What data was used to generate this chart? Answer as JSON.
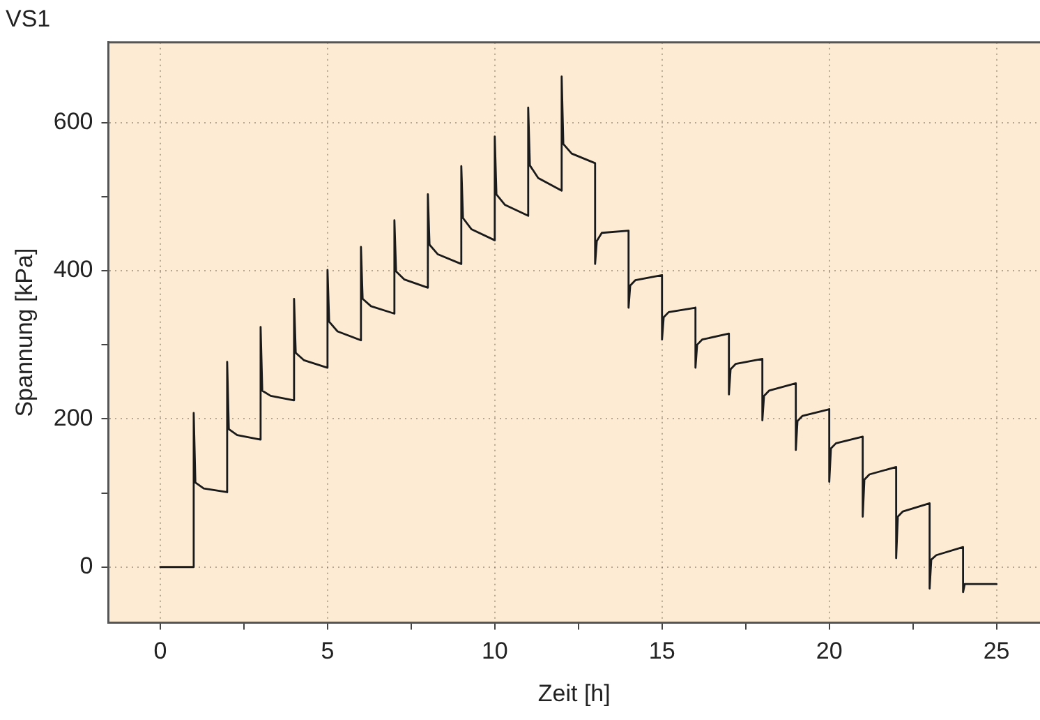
{
  "chart_data": {
    "type": "line",
    "title": "VS1",
    "xlabel": "Zeit [h]",
    "ylabel": "Spannung [kPa]",
    "xlim": [
      -1.55,
      26.3
    ],
    "ylim": [
      -75,
      708
    ],
    "xticks": [
      0,
      {
        "value": 2.5,
        "label": null
      },
      5,
      {
        "value": 7.5,
        "label": null
      },
      10,
      {
        "value": 12.5,
        "label": null
      },
      15,
      {
        "value": 17.5,
        "label": null
      },
      20,
      {
        "value": 22.5,
        "label": null
      },
      25
    ],
    "yticks": [
      0,
      {
        "value": 100,
        "label": null
      },
      200,
      {
        "value": 300,
        "label": null
      },
      400,
      {
        "value": 500,
        "label": null
      },
      600
    ],
    "grid": true,
    "legend": false,
    "marker": "none",
    "line_style": "solid",
    "series": [
      {
        "color": "#1a1a1a",
        "x": [
          0,
          1,
          1,
          1.05,
          1.3,
          2,
          2,
          2.05,
          2.3,
          3,
          3,
          3.05,
          3.3,
          4,
          4,
          4.05,
          4.3,
          5,
          5,
          5.05,
          5.3,
          6,
          6,
          6.05,
          6.3,
          7,
          7,
          7.05,
          7.3,
          8,
          8,
          8.05,
          8.3,
          9,
          9,
          9.05,
          9.3,
          10,
          10,
          10.05,
          10.3,
          11,
          11,
          11.05,
          11.3,
          12,
          12,
          12.05,
          12.3,
          13,
          13,
          13.05,
          13.2,
          14,
          14,
          14.05,
          14.2,
          15,
          15,
          15.05,
          15.2,
          16,
          16,
          16.05,
          16.2,
          17,
          17,
          17.05,
          17.2,
          18,
          18,
          18.05,
          18.2,
          19,
          19,
          19.05,
          19.2,
          20,
          20,
          20.05,
          20.2,
          21,
          21,
          21.05,
          21.2,
          22,
          22,
          22.05,
          22.2,
          23,
          23,
          23.05,
          23.2,
          24,
          24,
          24.05,
          25
        ],
        "values": [
          0,
          0,
          208,
          114,
          106,
          101,
          277,
          186,
          178,
          172,
          324,
          238,
          231,
          225,
          362,
          289,
          279,
          269,
          401,
          331,
          318,
          306,
          432,
          362,
          352,
          342,
          468,
          399,
          388,
          377,
          503,
          435,
          422,
          409,
          541,
          471,
          456,
          441,
          581,
          503,
          489,
          474,
          620,
          542,
          525,
          508,
          662,
          571,
          558,
          545,
          409,
          440,
          451,
          454,
          350,
          380,
          387,
          394,
          307,
          337,
          344,
          350,
          269,
          300,
          307,
          315,
          233,
          267,
          274,
          281,
          198,
          231,
          238,
          248,
          158,
          197,
          204,
          213,
          115,
          160,
          167,
          176,
          68,
          118,
          125,
          135,
          12,
          68,
          75,
          86,
          -29,
          10,
          16,
          27,
          -34,
          -23,
          -23
        ]
      }
    ]
  }
}
